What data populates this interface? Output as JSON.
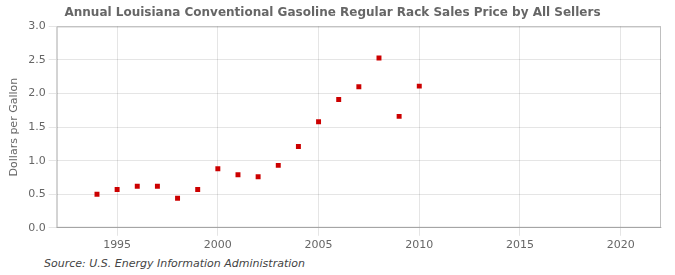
{
  "chart_data": {
    "type": "scatter",
    "title": "Annual Louisiana Conventional Gasoline Regular Rack Sales Price by All Sellers",
    "ylabel": "Dollars per Gallon",
    "annotations": [
      "Source: U.S. Energy Information Administration"
    ],
    "x": [
      1994,
      1995,
      1996,
      1997,
      1998,
      1999,
      2000,
      2001,
      2002,
      2003,
      2004,
      2005,
      2006,
      2007,
      2008,
      2009,
      2010
    ],
    "values": [
      0.5,
      0.57,
      0.62,
      0.62,
      0.44,
      0.57,
      0.88,
      0.79,
      0.76,
      0.93,
      1.21,
      1.58,
      1.91,
      2.1,
      2.53,
      1.66,
      2.11
    ],
    "color": "#cc0000",
    "marker": "square",
    "xlim": [
      1992,
      2022
    ],
    "ylim": [
      0.0,
      3.0
    ],
    "xticks": [
      1995,
      2000,
      2005,
      2010,
      2015,
      2020
    ],
    "yticks": [
      {
        "value": 0,
        "label": "0.0"
      },
      0.5,
      {
        "value": 1,
        "label": "1.0"
      },
      1.5,
      {
        "value": 2,
        "label": "2.0"
      },
      2.5,
      {
        "value": 3,
        "label": "3.0"
      }
    ],
    "grid": true
  }
}
